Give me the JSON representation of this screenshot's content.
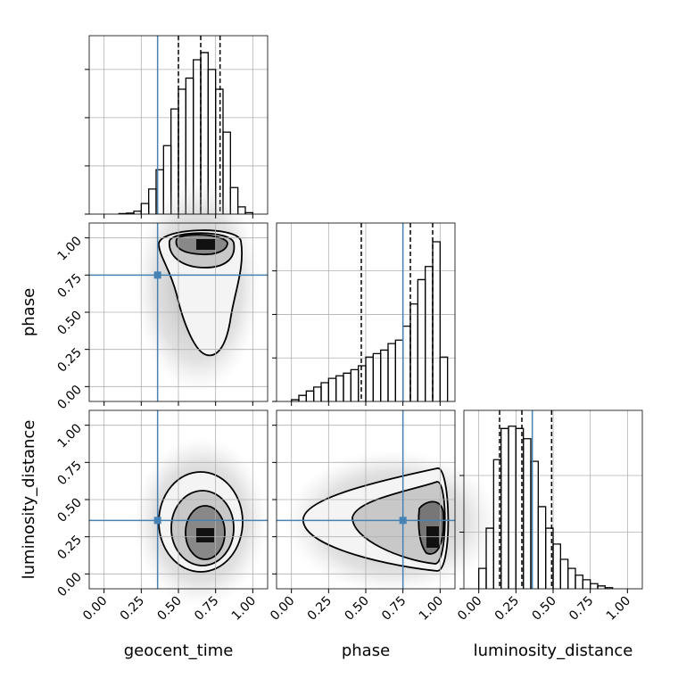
{
  "chart_data": {
    "type": "corner",
    "lim": [
      -0.1,
      1.1
    ],
    "ticks": [
      {
        "value": 0,
        "label": "0.00"
      },
      {
        "value": 0.25,
        "label": "0.25"
      },
      {
        "value": 0.5,
        "label": "0.50"
      },
      {
        "value": 0.75,
        "label": "0.75"
      },
      {
        "value": 1,
        "label": "1.00"
      }
    ],
    "truth_color": "#4682b4",
    "grid": true,
    "parameters": [
      {
        "name": "geocent_time",
        "truth": 0.36,
        "quantiles": [
          0.5,
          0.65,
          0.78
        ],
        "bins": [
          0.1,
          0.15,
          0.2,
          0.25,
          0.3,
          0.35,
          0.4,
          0.45,
          0.5,
          0.55,
          0.6,
          0.65,
          0.7,
          0.75,
          0.8,
          0.85,
          0.9,
          0.95,
          1.0
        ],
        "counts": [
          1,
          2,
          6,
          22,
          52,
          92,
          142,
          218,
          259,
          282,
          320,
          335,
          300,
          259,
          170,
          55,
          15,
          3
        ],
        "ylim": [
          0,
          370
        ],
        "yticks": [
          0,
          100,
          200,
          300
        ]
      },
      {
        "name": "phase",
        "truth": 0.75,
        "quantiles": [
          0.47,
          0.8,
          0.95
        ],
        "bins": [
          0,
          0.05,
          0.1,
          0.15,
          0.2,
          0.25,
          0.3,
          0.35,
          0.4,
          0.45,
          0.5,
          0.55,
          0.6,
          0.65,
          0.7,
          0.75,
          0.8,
          0.85,
          0.9,
          0.95,
          1.0,
          1.05
        ],
        "counts": [
          0.04,
          0.14,
          0.24,
          0.33,
          0.43,
          0.53,
          0.59,
          0.65,
          0.73,
          0.82,
          1.02,
          1.1,
          1.18,
          1.33,
          1.41,
          1.73,
          2.24,
          2.8,
          3.1,
          3.67,
          1.02
        ],
        "ylim": [
          0,
          4.1
        ],
        "yticks": [
          0,
          1,
          2,
          3
        ]
      },
      {
        "name": "luminosity_distance",
        "truth": 0.36,
        "quantiles": [
          0.14,
          0.29,
          0.49
        ],
        "bins": [
          0,
          0.05,
          0.1,
          0.15,
          0.2,
          0.25,
          0.3,
          0.35,
          0.4,
          0.45,
          0.5,
          0.55,
          0.6,
          0.65,
          0.7,
          0.75,
          0.8,
          0.85,
          0.9
        ],
        "counts": [
          0.36,
          1.07,
          2.28,
          2.83,
          2.87,
          2.83,
          2.65,
          2.25,
          1.45,
          1.07,
          0.79,
          0.52,
          0.36,
          0.24,
          0.16,
          0.09,
          0.05,
          0.02
        ],
        "ylim": [
          0,
          3.15
        ],
        "yticks": [
          0,
          1,
          2
        ]
      }
    ]
  }
}
